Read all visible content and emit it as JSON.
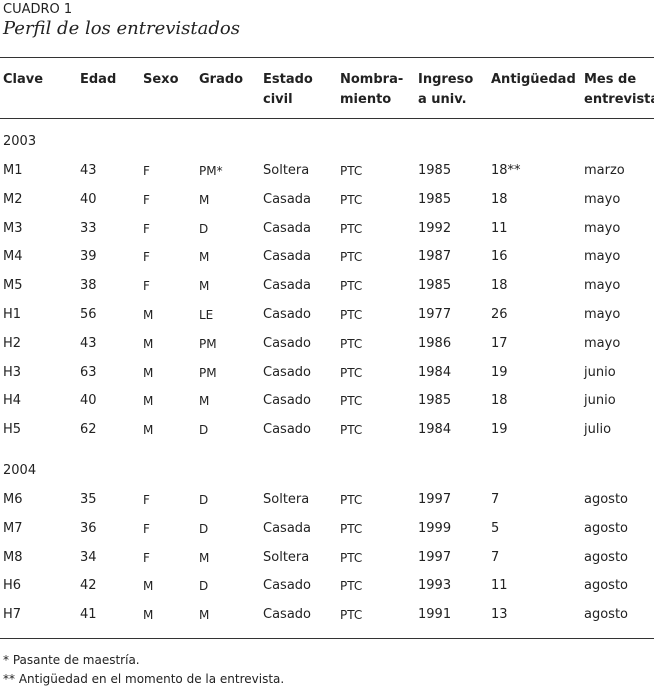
{
  "table_label": "CUADRO 1",
  "title": "Perfil de los entrevistados",
  "headers": [
    [
      "Clave"
    ],
    [
      "Edad"
    ],
    [
      "Sexo"
    ],
    [
      "Grado"
    ],
    [
      "Estado",
      "civil"
    ],
    [
      "Nombra-",
      "miento"
    ],
    [
      "Ingreso",
      "a univ."
    ],
    [
      "Antigüedad"
    ],
    [
      "Mes de",
      "entrevista"
    ]
  ],
  "groups": [
    {
      "year": 2003,
      "rows": [
        [
          "M1",
          43,
          "F",
          "PM*",
          "Soltera",
          "PTC",
          1985,
          "18**",
          "marzo"
        ],
        [
          "M2",
          40,
          "F",
          "M",
          "Casada",
          "PTC",
          1985,
          18,
          "mayo"
        ],
        [
          "M3",
          33,
          "F",
          "D",
          "Casada",
          "PTC",
          1992,
          11,
          "mayo"
        ],
        [
          "M4",
          39,
          "F",
          "M",
          "Casada",
          "PTC",
          1987,
          16,
          "mayo"
        ],
        [
          "M5",
          38,
          "F",
          "M",
          "Casada",
          "PTC",
          1985,
          18,
          "mayo"
        ],
        [
          "H1",
          56,
          "M",
          "LE",
          "Casado",
          "PTC",
          1977,
          26,
          "mayo"
        ],
        [
          "H2",
          43,
          "M",
          "PM",
          "Casado",
          "PTC",
          1986,
          17,
          "mayo"
        ],
        [
          "H3",
          63,
          "M",
          "PM",
          "Casado",
          "PTC",
          1984,
          19,
          "junio"
        ],
        [
          "H4",
          40,
          "M",
          "M",
          "Casado",
          "PTC",
          1985,
          18,
          "junio"
        ],
        [
          "H5",
          62,
          "M",
          "D",
          "Casado",
          "PTC",
          1984,
          19,
          "julio"
        ]
      ]
    },
    {
      "year": 2004,
      "rows": [
        [
          "M6",
          35,
          "F",
          "D",
          "Soltera",
          "PTC",
          1997,
          7,
          "agosto"
        ],
        [
          "M7",
          36,
          "F",
          "D",
          "Casada",
          "PTC",
          1999,
          5,
          "agosto"
        ],
        [
          "M8",
          34,
          "F",
          "M",
          "Soltera",
          "PTC",
          1997,
          7,
          "agosto"
        ],
        [
          "H6",
          42,
          "M",
          "D",
          "Casado",
          "PTC",
          1993,
          11,
          "agosto"
        ],
        [
          "H7",
          41,
          "M",
          "M",
          "Casado",
          "PTC",
          1991,
          13,
          "agosto"
        ]
      ]
    }
  ],
  "footnotes": [
    "*  Pasante de maestría.",
    "** Antigüedad en el momento de la entrevista."
  ]
}
